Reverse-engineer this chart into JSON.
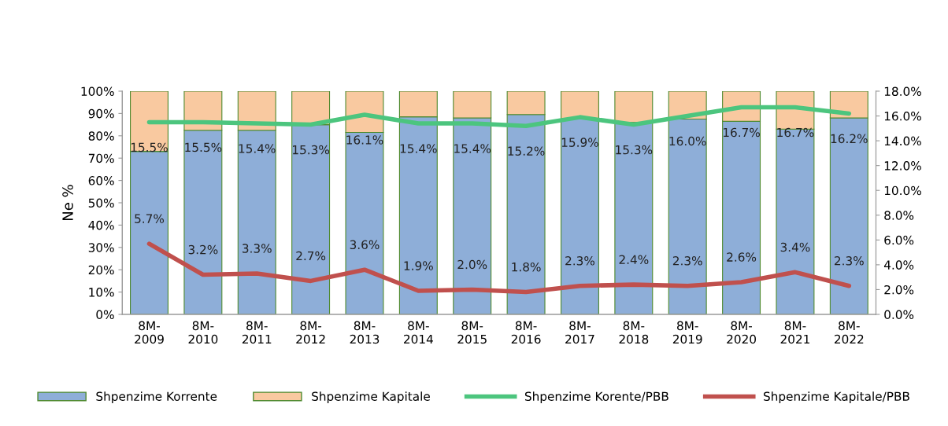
{
  "chart_data": {
    "type": "bar",
    "stacked": true,
    "ylabel": "Ne %",
    "categories": [
      "8M-\n2009",
      "8M-\n2010",
      "8M-\n2011",
      "8M-\n2012",
      "8M-\n2013",
      "8M-\n2014",
      "8M-\n2015",
      "8M-\n2016",
      "8M-\n2017",
      "8M-\n2018",
      "8M-\n2019",
      "8M-\n2020",
      "8M-\n2021",
      "8M-\n2022"
    ],
    "ylim": [
      0,
      100
    ],
    "yticks": [
      {
        "value": 0,
        "label": "0%"
      },
      {
        "value": 10,
        "label": "10%"
      },
      {
        "value": 20,
        "label": "20%"
      },
      {
        "value": 30,
        "label": "30%"
      },
      {
        "value": 40,
        "label": "40%"
      },
      {
        "value": 50,
        "label": "50%"
      },
      {
        "value": 60,
        "label": "60%"
      },
      {
        "value": 70,
        "label": "70%"
      },
      {
        "value": 80,
        "label": "80%"
      },
      {
        "value": 90,
        "label": "90%"
      },
      {
        "value": 100,
        "label": "100%"
      }
    ],
    "y2lim": [
      0,
      18
    ],
    "y2ticks": [
      {
        "value": 0,
        "label": "0.0%"
      },
      {
        "value": 2,
        "label": "2.0%"
      },
      {
        "value": 4,
        "label": "4.0%"
      },
      {
        "value": 6,
        "label": "6.0%"
      },
      {
        "value": 8,
        "label": "8.0%"
      },
      {
        "value": 10,
        "label": "10.0%"
      },
      {
        "value": 12,
        "label": "12.0%"
      },
      {
        "value": 14,
        "label": "14.0%"
      },
      {
        "value": 16,
        "label": "16.0%"
      },
      {
        "value": 18,
        "label": "18.0%"
      }
    ],
    "grid": false,
    "legend": "bottom",
    "series": [
      {
        "name": "Shpenzime Korrente",
        "color": "#8eaed8",
        "values": [
          73,
          82.5,
          82.5,
          85,
          81.5,
          88.5,
          88,
          89.5,
          87.5,
          86,
          87.5,
          86.5,
          83,
          88
        ]
      },
      {
        "name": "Shpenzime Kapitale",
        "color": "#f9c9a0",
        "values": [
          27,
          17.5,
          17.5,
          15,
          18.5,
          11.5,
          12,
          10.5,
          12.5,
          14,
          12.5,
          13.5,
          17,
          12
        ]
      },
      {
        "name": "Shpenzime Korente/PBB",
        "type": "line",
        "axis": "y2",
        "color": "#4cc57e",
        "values": [
          15.5,
          15.5,
          15.4,
          15.3,
          16.1,
          15.4,
          15.4,
          15.2,
          15.9,
          15.3,
          16.0,
          16.7,
          16.7,
          16.2
        ],
        "value_labels": [
          "15.5%",
          "15.5%",
          "15.4%",
          "15.3%",
          "16.1%",
          "15.4%",
          "15.4%",
          "15.2%",
          "15.9%",
          "15.3%",
          "16.0%",
          "16.7%",
          "16.7%",
          "16.2%"
        ]
      },
      {
        "name": "Shpenzime Kapitale/PBB",
        "type": "line",
        "axis": "y2",
        "color": "#c0504d",
        "values": [
          5.7,
          3.2,
          3.3,
          2.7,
          3.6,
          1.9,
          2.0,
          1.8,
          2.3,
          2.4,
          2.3,
          2.6,
          3.4,
          2.3
        ],
        "value_labels": [
          "5.7%",
          "3.2%",
          "3.3%",
          "2.7%",
          "3.6%",
          "1.9%",
          "2.0%",
          "1.8%",
          "2.3%",
          "2.4%",
          "2.3%",
          "2.6%",
          "3.4%",
          "2.3%"
        ]
      }
    ]
  }
}
